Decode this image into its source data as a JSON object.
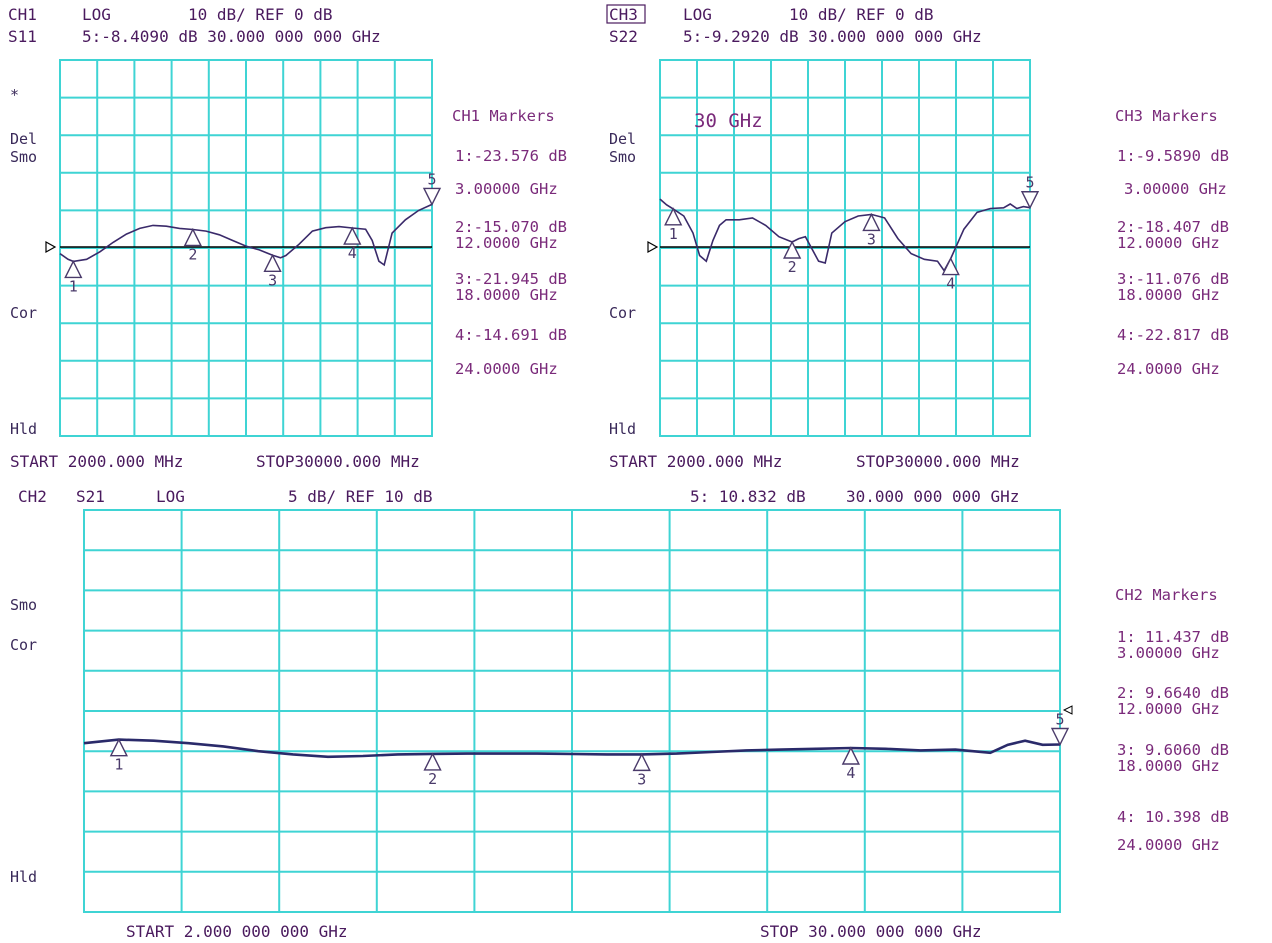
{
  "ch1": {
    "header": {
      "ch": "CH1",
      "fmt": "LOG",
      "scale": "10 dB/ REF 0 dB",
      "param": "S11",
      "marker": "5:-8.4090 dB 30.000 000 000 GHz"
    },
    "side": {
      "star": "*",
      "del": "Del",
      "smo": "Smo",
      "cor": "Cor",
      "hld": "Hld"
    },
    "markers_title": "CH1 Markers",
    "markers": [
      {
        "val": "1:-23.576 dB",
        "freq": "3.00000 GHz"
      },
      {
        "val": "2:-15.070 dB",
        "freq": "12.0000 GHz"
      },
      {
        "val": "3:-21.945 dB",
        "freq": "18.0000 GHz"
      },
      {
        "val": "4:-14.691 dB",
        "freq": "24.0000 GHz"
      }
    ],
    "start": "START 2000.000 MHz",
    "stop": "STOP30000.000 MHz"
  },
  "ch3": {
    "header": {
      "ch": "CH3",
      "fmt": "LOG",
      "scale": "10 dB/ REF 0 dB",
      "param": "S22",
      "marker": "5:-9.2920 dB 30.000 000 000 GHz"
    },
    "side": {
      "del": "Del",
      "smo": "Smo",
      "cor": "Cor",
      "hld": "Hld"
    },
    "annotation": "30 GHz",
    "markers_title": "CH3 Markers",
    "markers": [
      {
        "val": "1:-9.5890 dB",
        "freq": "3.00000 GHz"
      },
      {
        "val": "2:-18.407 dB",
        "freq": "12.0000 GHz"
      },
      {
        "val": "3:-11.076 dB",
        "freq": "18.0000 GHz"
      },
      {
        "val": "4:-22.817 dB",
        "freq": "24.0000 GHz"
      }
    ],
    "start": "START 2000.000 MHz",
    "stop": "STOP30000.000 MHz"
  },
  "ch2": {
    "header": {
      "ch": "CH2",
      "param": "S21",
      "fmt": "LOG",
      "scale": "5 dB/ REF 10 dB",
      "marker_val": "5: 10.832 dB",
      "marker_freq": "30.000 000 000 GHz"
    },
    "side": {
      "smo": "Smo",
      "cor": "Cor",
      "hld": "Hld"
    },
    "markers_title": "CH2 Markers",
    "markers": [
      {
        "val": "1: 11.437 dB",
        "freq": "3.00000 GHz"
      },
      {
        "val": "2: 9.6640 dB",
        "freq": "12.0000 GHz"
      },
      {
        "val": "3: 9.6060 dB",
        "freq": "18.0000 GHz"
      },
      {
        "val": "4: 10.398 dB",
        "freq": "24.0000 GHz"
      }
    ],
    "start": "START  2.000 000 000 GHz",
    "stop": "STOP 30.000 000 000 GHz"
  },
  "chart_data": [
    {
      "type": "line",
      "param": "S11",
      "x_unit": "GHz",
      "y_unit": "dB",
      "xlim": [
        2,
        30
      ],
      "ylim": [
        -70,
        30
      ],
      "ref_db": 0,
      "db_per_div": 10,
      "x": [
        2,
        2.6,
        3,
        4,
        5,
        6,
        7,
        8,
        9,
        10,
        11,
        12,
        13,
        14,
        15,
        16,
        17,
        18,
        18.6,
        19,
        20,
        21,
        22,
        23,
        24,
        25,
        25.5,
        26,
        26.4,
        27,
        28,
        29,
        30
      ],
      "values": [
        -21.5,
        -23.0,
        -23.576,
        -23.0,
        -21.0,
        -18.5,
        -16.3,
        -14.8,
        -14.0,
        -14.2,
        -14.8,
        -15.07,
        -15.5,
        -16.5,
        -18.0,
        -19.5,
        -20.5,
        -21.945,
        -22.6,
        -22.0,
        -19.0,
        -15.5,
        -14.6,
        -14.3,
        -14.691,
        -15.0,
        -18.0,
        -23.5,
        -24.5,
        -16.0,
        -12.5,
        -10.0,
        -8.409
      ],
      "marker_x": [
        3,
        12,
        18,
        24,
        30
      ],
      "marker_y": [
        -23.576,
        -15.07,
        -21.945,
        -14.691,
        -8.409
      ]
    },
    {
      "type": "line",
      "param": "S22",
      "x_unit": "GHz",
      "y_unit": "dB",
      "xlim": [
        2,
        30
      ],
      "ylim": [
        -70,
        30
      ],
      "ref_db": 0,
      "db_per_div": 10,
      "x": [
        2,
        2.5,
        3,
        3.8,
        4.5,
        5,
        5.5,
        6,
        6.5,
        7,
        8,
        9,
        10,
        11,
        12,
        12.5,
        13,
        14,
        14.5,
        15,
        16,
        17,
        18,
        19,
        20,
        21,
        22,
        23,
        23.5,
        24,
        25,
        26,
        27,
        28,
        28.5,
        29,
        29.5,
        30
      ],
      "values": [
        -7.0,
        -8.5,
        -9.589,
        -11.5,
        -16.0,
        -22.0,
        -23.5,
        -18.0,
        -14.0,
        -12.5,
        -12.5,
        -12.0,
        -14.0,
        -17.0,
        -18.407,
        -17.5,
        -17.0,
        -23.5,
        -24.0,
        -16.0,
        -13.0,
        -11.5,
        -11.076,
        -12.0,
        -17.5,
        -21.5,
        -23.0,
        -23.5,
        -26.0,
        -22.817,
        -15.0,
        -10.5,
        -9.5,
        -9.3,
        -8.3,
        -9.5,
        -9.0,
        -9.292
      ],
      "marker_x": [
        3,
        12,
        18,
        24,
        30
      ],
      "marker_y": [
        -9.589,
        -18.407,
        -11.076,
        -22.817,
        -9.292
      ]
    },
    {
      "type": "line",
      "param": "S21",
      "x_unit": "GHz",
      "y_unit": "dB",
      "xlim": [
        2,
        30
      ],
      "ylim": [
        -10,
        40
      ],
      "ref_db": 10,
      "db_per_div": 5,
      "x": [
        2,
        3,
        4,
        5,
        6,
        7,
        8,
        9,
        10,
        11,
        12,
        13,
        14,
        15,
        16,
        17,
        18,
        19,
        20,
        21,
        22,
        23,
        24,
        25,
        26,
        27,
        27.5,
        28,
        28.5,
        29,
        29.5,
        30
      ],
      "values": [
        11.0,
        11.437,
        11.3,
        11.0,
        10.6,
        10.0,
        9.6,
        9.3,
        9.4,
        9.6,
        9.664,
        9.7,
        9.7,
        9.7,
        9.65,
        9.6,
        9.606,
        9.7,
        9.9,
        10.1,
        10.2,
        10.3,
        10.398,
        10.3,
        10.1,
        10.2,
        10.0,
        9.8,
        10.8,
        11.3,
        10.8,
        10.832
      ],
      "marker_x": [
        3,
        12,
        18,
        24,
        30
      ],
      "marker_y": [
        11.437,
        9.664,
        9.606,
        10.398,
        10.832
      ]
    }
  ]
}
